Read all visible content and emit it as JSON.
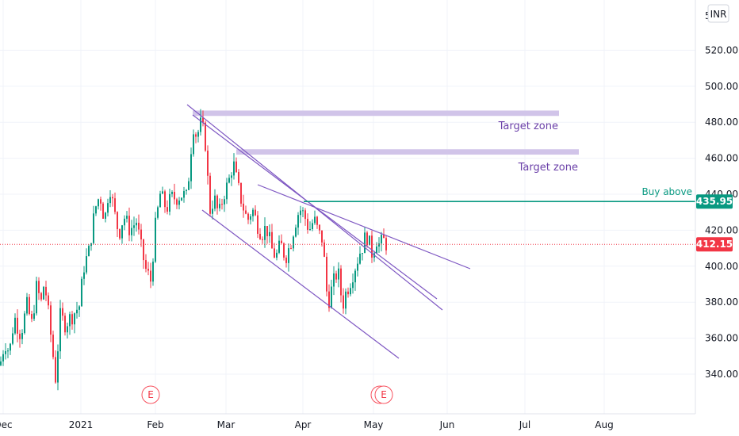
{
  "chart_data": {
    "type": "candlestick",
    "currency": "INR",
    "y_axis": {
      "ylim": [
        320,
        540
      ],
      "ticks": [
        "340.00",
        "360.00",
        "380.00",
        "400.00",
        "420.00",
        "440.00",
        "460.00",
        "480.00",
        "500.00",
        "520.00"
      ],
      "top_partial": "5"
    },
    "x_axis": {
      "ticks": [
        "Dec",
        "2021",
        "Feb",
        "Mar",
        "Apr",
        "May",
        "Jun",
        "Jul",
        "Aug"
      ]
    },
    "last_price": {
      "value": 412.15,
      "label": "412.15"
    },
    "buy_level": {
      "value": 435.95,
      "label": "435.95",
      "text": "Buy above"
    },
    "target_zones": [
      {
        "text": "Target zone",
        "y_low": 483.5,
        "y_high": 486.5
      },
      {
        "text": "Target zone",
        "y_low": 462,
        "y_high": 465
      }
    ],
    "earnings_markers": [
      {
        "label": "E",
        "x": "Feb"
      },
      {
        "label": "E",
        "x": "May"
      }
    ],
    "price_path": [
      [
        0,
        345
      ],
      [
        6,
        358
      ],
      [
        12,
        352
      ],
      [
        18,
        372
      ],
      [
        26,
        362
      ],
      [
        34,
        378
      ],
      [
        40,
        368
      ],
      [
        46,
        388
      ],
      [
        52,
        380
      ],
      [
        56,
        392
      ],
      [
        62,
        370
      ],
      [
        70,
        338
      ],
      [
        76,
        372
      ],
      [
        82,
        368
      ],
      [
        90,
        372
      ],
      [
        100,
        378
      ],
      [
        106,
        400
      ],
      [
        112,
        408
      ],
      [
        120,
        432
      ],
      [
        126,
        440
      ],
      [
        132,
        425
      ],
      [
        138,
        446
      ],
      [
        144,
        430
      ],
      [
        150,
        418
      ],
      [
        156,
        428
      ],
      [
        164,
        420
      ],
      [
        172,
        425
      ],
      [
        178,
        410
      ],
      [
        184,
        398
      ],
      [
        190,
        392
      ],
      [
        196,
        422
      ],
      [
        202,
        440
      ],
      [
        210,
        432
      ],
      [
        216,
        438
      ],
      [
        222,
        438
      ],
      [
        230,
        440
      ],
      [
        236,
        438
      ],
      [
        240,
        462
      ],
      [
        244,
        478
      ],
      [
        248,
        472
      ],
      [
        254,
        480
      ],
      [
        260,
        466
      ],
      [
        264,
        430
      ],
      [
        270,
        438
      ],
      [
        276,
        428
      ],
      [
        282,
        440
      ],
      [
        288,
        446
      ],
      [
        294,
        458
      ],
      [
        300,
        444
      ],
      [
        306,
        434
      ],
      [
        312,
        425
      ],
      [
        318,
        432
      ],
      [
        324,
        424
      ],
      [
        330,
        418
      ],
      [
        336,
        422
      ],
      [
        342,
        410
      ],
      [
        348,
        405
      ],
      [
        354,
        412
      ],
      [
        360,
        405
      ],
      [
        366,
        412
      ],
      [
        372,
        424
      ],
      [
        378,
        432
      ],
      [
        384,
        428
      ],
      [
        390,
        420
      ],
      [
        396,
        426
      ],
      [
        402,
        418
      ],
      [
        408,
        414
      ],
      [
        410,
        392
      ],
      [
        414,
        380
      ],
      [
        420,
        390
      ],
      [
        426,
        398
      ],
      [
        432,
        378
      ],
      [
        436,
        385
      ],
      [
        442,
        392
      ],
      [
        448,
        400
      ],
      [
        454,
        408
      ],
      [
        458,
        412
      ],
      [
        462,
        418
      ],
      [
        466,
        412
      ],
      [
        470,
        406
      ],
      [
        474,
        416
      ],
      [
        478,
        412
      ],
      [
        484,
        414
      ],
      [
        488,
        412
      ]
    ]
  }
}
